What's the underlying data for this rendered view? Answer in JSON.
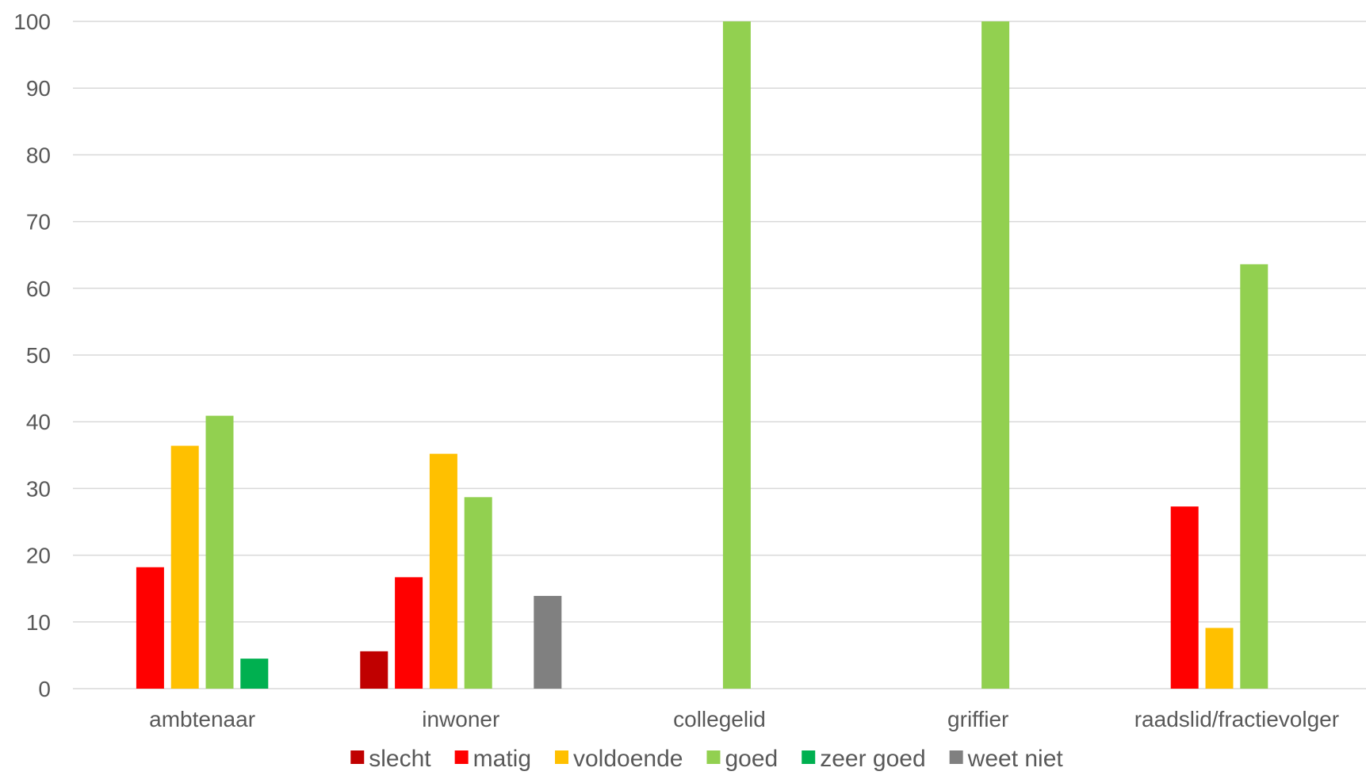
{
  "chart_data": {
    "type": "bar",
    "categories": [
      "ambtenaar",
      "inwoner",
      "collegelid",
      "griffier",
      "raadslid/fractievolger"
    ],
    "series": [
      {
        "name": "slecht",
        "color": "#C00000",
        "values": [
          0,
          5.6,
          0,
          0,
          0
        ]
      },
      {
        "name": "matig",
        "color": "#FF0000",
        "values": [
          18.2,
          16.7,
          0,
          0,
          27.3
        ]
      },
      {
        "name": "voldoende",
        "color": "#FFC000",
        "values": [
          36.4,
          35.2,
          0,
          0,
          9.1
        ]
      },
      {
        "name": "goed",
        "color": "#92D050",
        "values": [
          40.9,
          28.7,
          100,
          100,
          63.6
        ]
      },
      {
        "name": "zeer goed",
        "color": "#00B050",
        "values": [
          4.5,
          0,
          0,
          0,
          0
        ]
      },
      {
        "name": "weet niet",
        "color": "#808080",
        "values": [
          0,
          13.9,
          0,
          0,
          0
        ]
      }
    ],
    "y_ticks": [
      "0",
      "10",
      "20",
      "30",
      "40",
      "50",
      "60",
      "70",
      "80",
      "90",
      "100"
    ],
    "ylim": [
      0,
      100
    ],
    "grid": true,
    "legend_position": "bottom"
  }
}
